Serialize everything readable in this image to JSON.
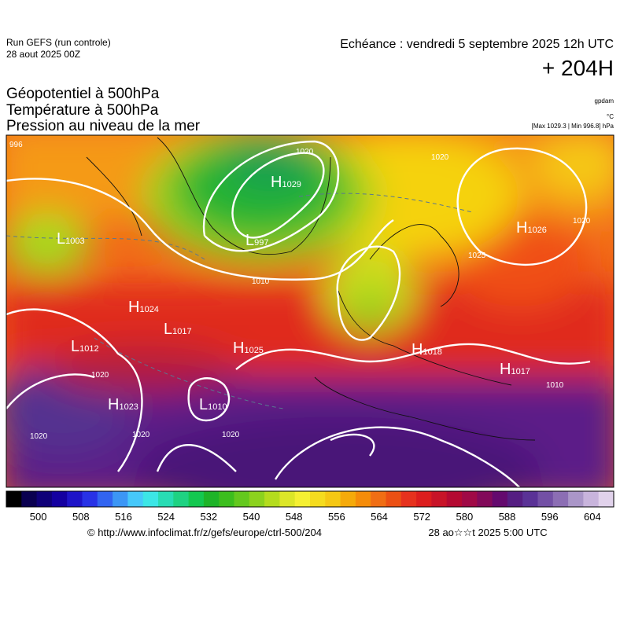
{
  "header": {
    "run": "Run GEFS (run controle)",
    "run_date": "28 aout 2025 00Z",
    "echeance": "Echéance : vendredi 5 septembre 2025 12h UTC",
    "horizon": "+ 204H"
  },
  "fields": [
    "Géopotentiel à 500hPa",
    "Température à 500hPa",
    "Pression au niveau de la mer"
  ],
  "units": {
    "geopotential": "gpdam",
    "temperature": "°C",
    "pressure": "[Max 1029.3 | Min 996.8] hPa"
  },
  "pressure_centers": [
    {
      "type": "H",
      "value": "1029"
    },
    {
      "type": "L",
      "value": "997"
    },
    {
      "type": "L",
      "value": "1003"
    },
    {
      "type": "H",
      "value": "1024"
    },
    {
      "type": "L",
      "value": "1017"
    },
    {
      "type": "L",
      "value": "1012"
    },
    {
      "type": "H",
      "value": "1025"
    },
    {
      "type": "H",
      "value": "1023"
    },
    {
      "type": "L",
      "value": "1010"
    },
    {
      "type": "H",
      "value": "1018"
    },
    {
      "type": "H",
      "value": "1017"
    },
    {
      "type": "H",
      "value": "1026"
    }
  ],
  "isobar_labels": [
    "996",
    "1010",
    "1020",
    "1020",
    "1020",
    "1020",
    "1020",
    "1025",
    "1020",
    "1010",
    "1020"
  ],
  "colorbar": {
    "xlim": [
      494,
      608
    ],
    "ticks": [
      500,
      508,
      516,
      524,
      532,
      540,
      548,
      556,
      564,
      572,
      580,
      588,
      596,
      604
    ],
    "colors": [
      "#000000",
      "#0a0050",
      "#0f0078",
      "#1400a0",
      "#1e14c8",
      "#2832e6",
      "#3264f0",
      "#3c96f5",
      "#46c8fa",
      "#3ce6e6",
      "#28dcb4",
      "#1ed282",
      "#14c850",
      "#1eb428",
      "#3cbe1e",
      "#64c81e",
      "#8cd21e",
      "#b4dc1e",
      "#dce628",
      "#f5f032",
      "#f5dc1e",
      "#f5c814",
      "#f5aa0a",
      "#f58c0a",
      "#f06e14",
      "#eb5014",
      "#e6321e",
      "#dc1e1e",
      "#c81428",
      "#b40a32",
      "#a00a46",
      "#820a5a",
      "#640a6e",
      "#551e82",
      "#5a3296",
      "#7350a5",
      "#8c6eb4",
      "#aa96c8",
      "#c8b4dc",
      "#e1d2eb"
    ]
  },
  "footer": {
    "source": "© http://www.infoclimat.fr/z/gefs/europe/ctrl-500/204",
    "generated": "28 ao☆☆t 2025  5:00 UTC"
  }
}
